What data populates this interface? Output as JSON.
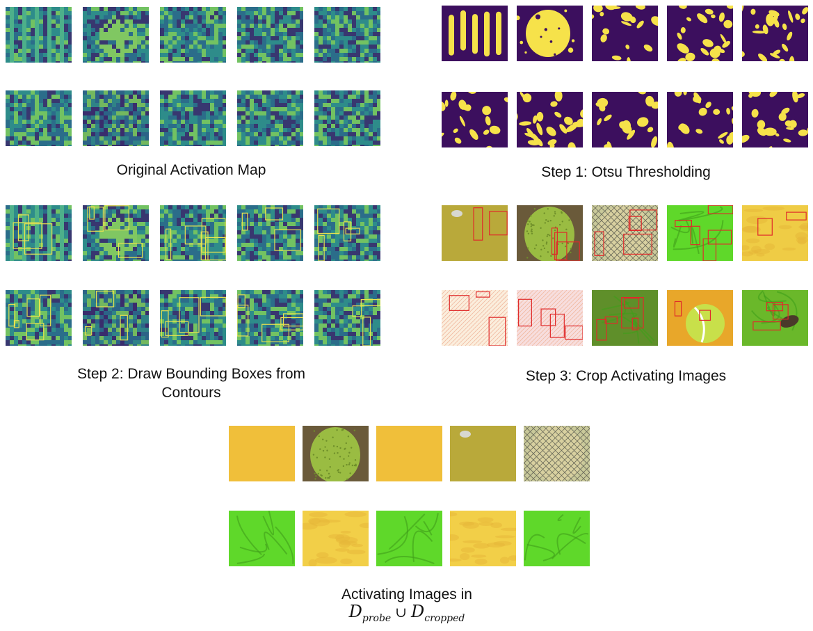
{
  "panels": {
    "original": {
      "caption": "Original Activation Map",
      "tile_style": "viridis",
      "tiles": [
        "act-stripes",
        "act-blob",
        "act-checker",
        "act-wrinkle",
        "act-noise",
        "act-noise",
        "act-dark-checker",
        "act-noise",
        "act-swirl",
        "act-swirl"
      ]
    },
    "otsu": {
      "caption": "Step 1: Otsu Thresholding",
      "tile_style": "binary",
      "tiles": [
        "bin-stripes",
        "bin-blob",
        "bin-maze",
        "bin-maze",
        "bin-maze",
        "bin-maze",
        "bin-maze",
        "bin-maze",
        "bin-maze",
        "bin-swirl"
      ]
    },
    "bbox": {
      "caption_line1": "Step 2: Draw Bounding Boxes from",
      "caption_line2": "Contours",
      "tile_style": "viridis-boxes"
    },
    "crop": {
      "caption": "Step 3: Crop Activating Images",
      "tile_style": "photo-boxes",
      "tiles": [
        "olive-texture",
        "jackfruit",
        "mesh-dish",
        "green-leaf",
        "yellow-paint",
        "hatched-light",
        "hatched-pink",
        "green-grass",
        "tennis-ball",
        "beetle-leaf"
      ]
    },
    "result": {
      "caption_line1": "Activating Images in",
      "formula": {
        "left": "D",
        "left_sub": "probe",
        "op": "∪",
        "right": "D",
        "right_sub": "cropped"
      },
      "tiles": [
        "yellow-plain",
        "jackfruit",
        "yellow-plain",
        "olive-texture",
        "mesh-dish",
        "green-leaf",
        "yellow-mottled",
        "green-leaf",
        "yellow-mottled",
        "green-leaf"
      ]
    }
  },
  "colors": {
    "viridis_dark": "#3b2a6b",
    "viridis_mid": "#2f8e8a",
    "viridis_light": "#7fce5a",
    "binary_dark": "#3c0f5e",
    "binary_light": "#f6e24a",
    "box_yellow": "#e9e24f",
    "box_red": "#e02a2a"
  }
}
